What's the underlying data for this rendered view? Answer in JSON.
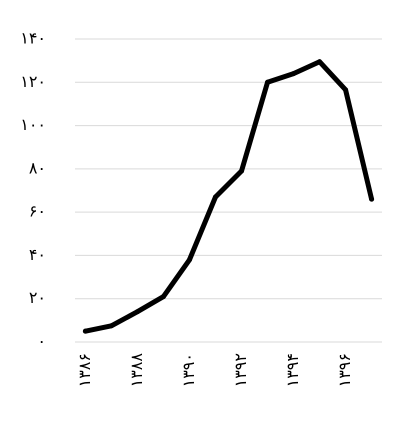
{
  "chart_data": {
    "type": "line",
    "title": "",
    "xlabel": "",
    "ylabel": "",
    "x": [
      1386,
      1387,
      1388,
      1389,
      1390,
      1391,
      1392,
      1393,
      1394,
      1395,
      1396,
      1397
    ],
    "series": [
      {
        "values": [
          5,
          7.5,
          14,
          21,
          38,
          67,
          79,
          120,
          124,
          129.5,
          116.5,
          66
        ]
      }
    ],
    "xlim": [
      1385.6,
      1397.4
    ],
    "ylim": [
      0,
      140
    ],
    "yticks": [
      0,
      20,
      40,
      60,
      80,
      100,
      120,
      140
    ],
    "ytick_labels": [
      "۰",
      "۲۰",
      "۴۰",
      "۶۰",
      "۸۰",
      "۱۰۰",
      "۱۲۰",
      "۱۴۰"
    ],
    "xticks": [
      1386,
      1388,
      1390,
      1392,
      1394,
      1396
    ],
    "xtick_labels": [
      "۱۳۸۶",
      "۱۳۸۸",
      "۱۳۹۰",
      "۱۳۹۲",
      "۱۳۹۴",
      "۱۳۹۶"
    ],
    "grid": true,
    "grid_axis": "y",
    "legend": false,
    "colors": {
      "line": "#000000",
      "grid": "#d9d9d9",
      "text": "#000000",
      "background": "#ffffff"
    }
  }
}
